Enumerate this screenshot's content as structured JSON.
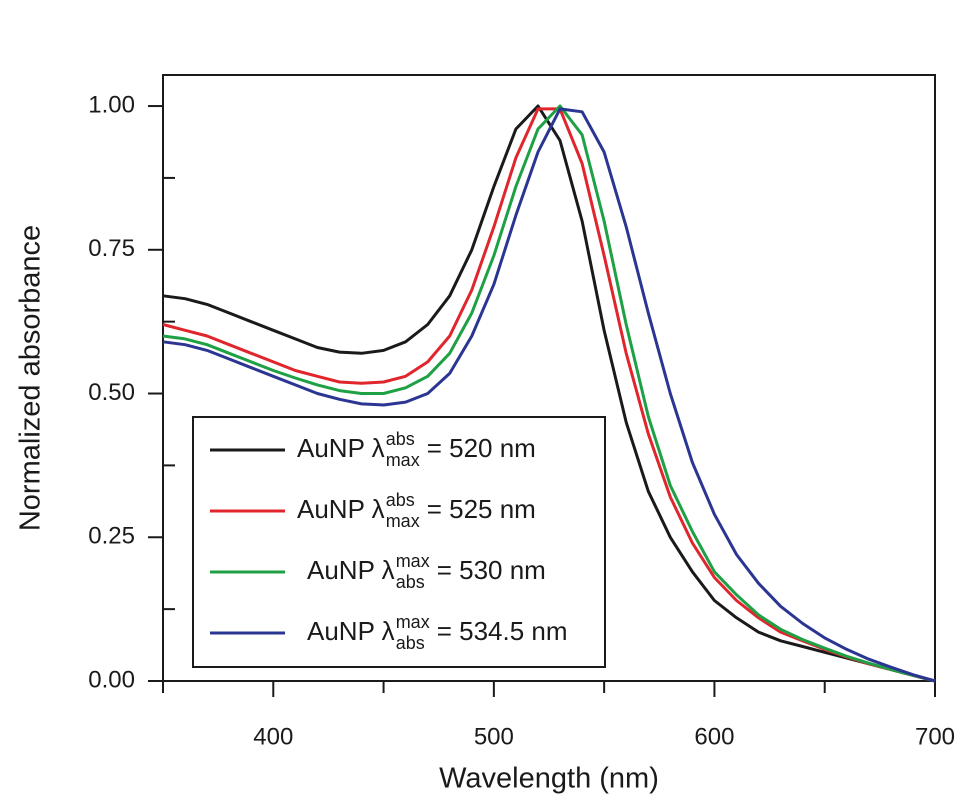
{
  "chart_data": {
    "type": "line",
    "x_label": "Wavelength (nm)",
    "y_label": "Normalized absorbance",
    "xlim": [
      350,
      700
    ],
    "ylim": [
      0,
      1.054
    ],
    "xticks": [
      400,
      500,
      600,
      700
    ],
    "xminorticks": [
      350,
      450,
      550,
      650
    ],
    "yticks": [
      {
        "value": 0,
        "label": "0.00"
      },
      {
        "value": 0.25,
        "label": "0.25"
      },
      {
        "value": 0.5,
        "label": "0.50"
      },
      {
        "value": 0.75,
        "label": "0.75"
      },
      {
        "value": 1,
        "label": "1.00"
      }
    ],
    "yminorticks": [
      0.125,
      0.375,
      0.625,
      0.875
    ],
    "legend": "lower-left",
    "grid": false,
    "x": [
      350,
      360,
      370,
      380,
      390,
      400,
      410,
      420,
      430,
      440,
      450,
      460,
      470,
      480,
      490,
      500,
      510,
      520,
      530,
      540,
      550,
      560,
      570,
      580,
      590,
      600,
      610,
      620,
      630,
      640,
      650,
      660,
      670,
      680,
      690,
      700
    ],
    "series": [
      {
        "name": {
          "text": "AuNP λ",
          "sup": "abs",
          "sub": "max",
          "tail": "= 520 nm"
        },
        "color": "#1a1a1a",
        "values": [
          0.67,
          0.665,
          0.655,
          0.64,
          0.625,
          0.61,
          0.595,
          0.58,
          0.572,
          0.57,
          0.575,
          0.59,
          0.62,
          0.67,
          0.75,
          0.86,
          0.96,
          1.0,
          0.94,
          0.8,
          0.61,
          0.45,
          0.33,
          0.25,
          0.19,
          0.14,
          0.11,
          0.085,
          0.07,
          0.06,
          0.05,
          0.04,
          0.03,
          0.02,
          0.01,
          0
        ]
      },
      {
        "name": {
          "text": "AuNP λ",
          "sup": "abs",
          "sub": "max",
          "tail": "= 525 nm"
        },
        "color": "#e0262c",
        "values": [
          0.62,
          0.61,
          0.6,
          0.585,
          0.57,
          0.555,
          0.54,
          0.53,
          0.52,
          0.518,
          0.52,
          0.53,
          0.555,
          0.6,
          0.68,
          0.79,
          0.91,
          0.995,
          0.995,
          0.9,
          0.74,
          0.57,
          0.43,
          0.32,
          0.24,
          0.18,
          0.14,
          0.11,
          0.085,
          0.07,
          0.055,
          0.042,
          0.03,
          0.02,
          0.01,
          0
        ]
      },
      {
        "name": {
          "text": "AuNP λ",
          "sup": "max",
          "sub": "abs",
          "tail": "= 530 nm"
        },
        "color": "#1ea045",
        "values": [
          0.6,
          0.595,
          0.585,
          0.57,
          0.555,
          0.54,
          0.527,
          0.515,
          0.505,
          0.5,
          0.5,
          0.51,
          0.53,
          0.57,
          0.64,
          0.74,
          0.86,
          0.96,
          1.0,
          0.95,
          0.8,
          0.62,
          0.46,
          0.34,
          0.26,
          0.19,
          0.15,
          0.115,
          0.09,
          0.072,
          0.057,
          0.043,
          0.031,
          0.02,
          0.01,
          0
        ]
      },
      {
        "name": {
          "text": "AuNP λ",
          "sup": "max",
          "sub": "abs",
          "tail": "= 534.5 nm"
        },
        "color": "#2b3592",
        "values": [
          0.59,
          0.585,
          0.575,
          0.56,
          0.545,
          0.53,
          0.515,
          0.5,
          0.49,
          0.482,
          0.48,
          0.485,
          0.5,
          0.535,
          0.6,
          0.69,
          0.81,
          0.92,
          0.995,
          0.99,
          0.92,
          0.79,
          0.64,
          0.5,
          0.38,
          0.29,
          0.22,
          0.17,
          0.13,
          0.1,
          0.075,
          0.055,
          0.038,
          0.024,
          0.011,
          0
        ]
      }
    ]
  }
}
